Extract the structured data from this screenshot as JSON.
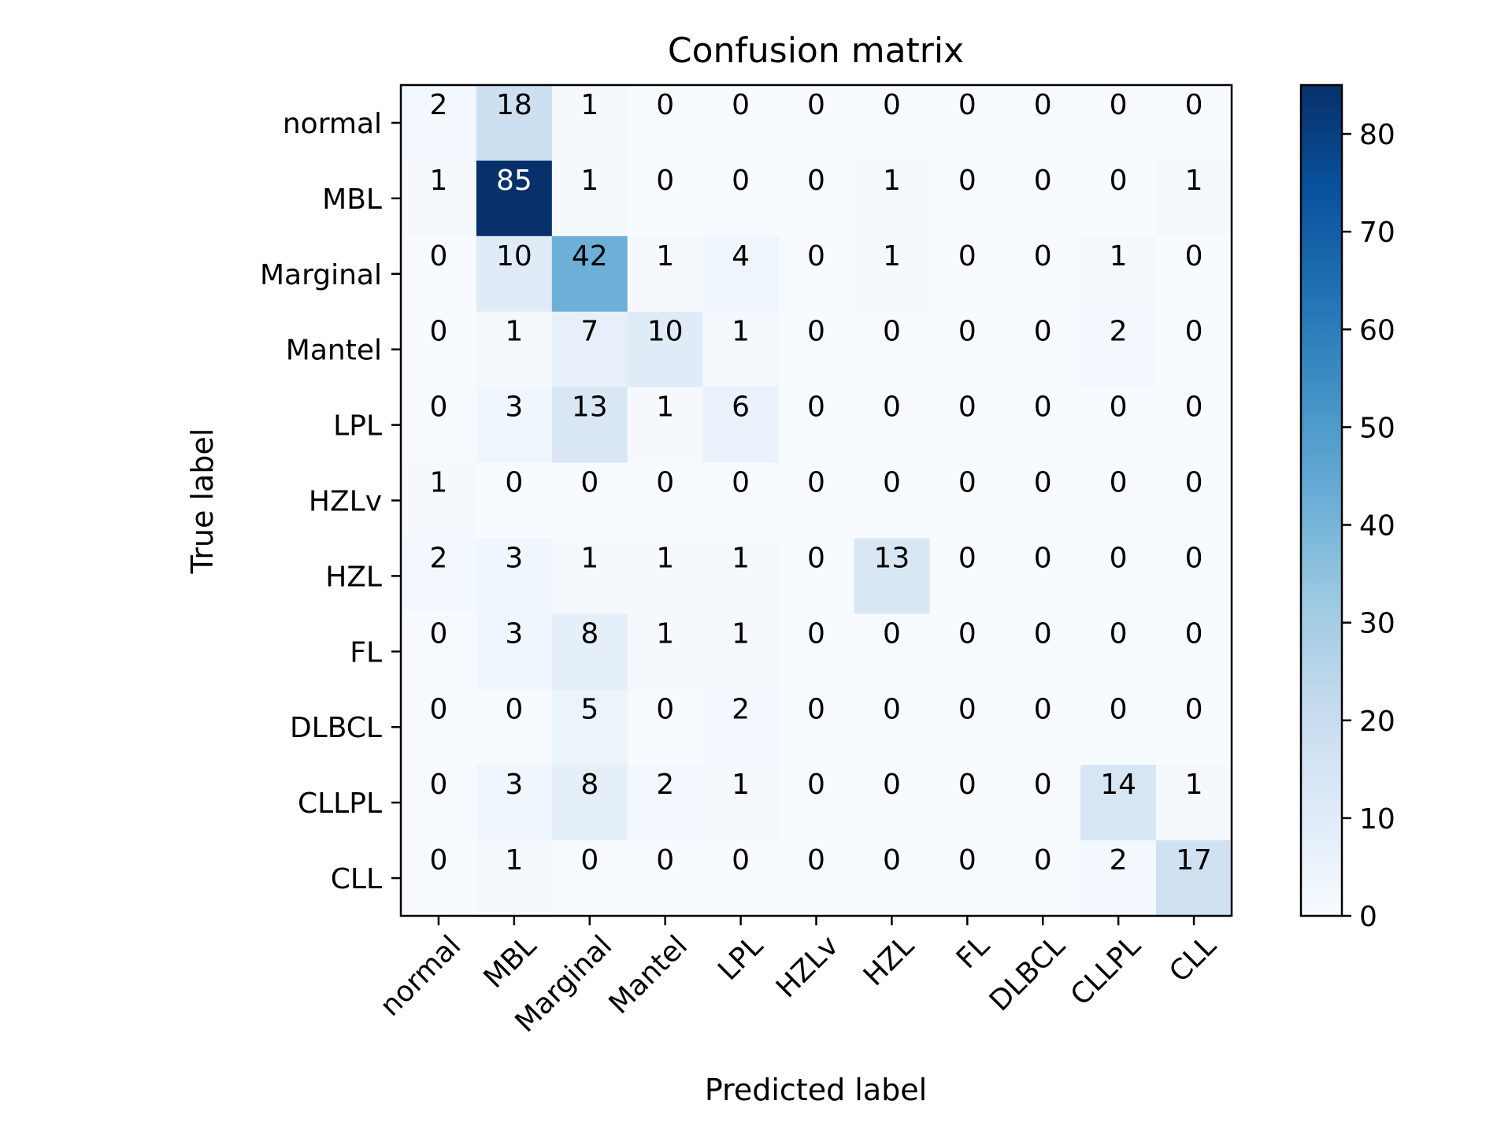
{
  "chart_data": {
    "type": "heatmap",
    "title": "Confusion matrix",
    "xlabel": "Predicted label",
    "ylabel": "True label",
    "x_categories": [
      "normal",
      "MBL",
      "Marginal",
      "Mantel",
      "LPL",
      "HZLv",
      "HZL",
      "FL",
      "DLBCL",
      "CLLPL",
      "CLL"
    ],
    "y_categories": [
      "normal",
      "MBL",
      "Marginal",
      "Mantel",
      "LPL",
      "HZLv",
      "HZL",
      "FL",
      "DLBCL",
      "CLLPL",
      "CLL"
    ],
    "values": [
      [
        2,
        18,
        1,
        0,
        0,
        0,
        0,
        0,
        0,
        0,
        0
      ],
      [
        1,
        85,
        1,
        0,
        0,
        0,
        1,
        0,
        0,
        0,
        1
      ],
      [
        0,
        10,
        42,
        1,
        4,
        0,
        1,
        0,
        0,
        1,
        0
      ],
      [
        0,
        1,
        7,
        10,
        1,
        0,
        0,
        0,
        0,
        2,
        0
      ],
      [
        0,
        3,
        13,
        1,
        6,
        0,
        0,
        0,
        0,
        0,
        0
      ],
      [
        1,
        0,
        0,
        0,
        0,
        0,
        0,
        0,
        0,
        0,
        0
      ],
      [
        2,
        3,
        1,
        1,
        1,
        0,
        13,
        0,
        0,
        0,
        0
      ],
      [
        0,
        3,
        8,
        1,
        1,
        0,
        0,
        0,
        0,
        0,
        0
      ],
      [
        0,
        0,
        5,
        0,
        2,
        0,
        0,
        0,
        0,
        0,
        0
      ],
      [
        0,
        3,
        8,
        2,
        1,
        0,
        0,
        0,
        0,
        14,
        1
      ],
      [
        0,
        1,
        0,
        0,
        0,
        0,
        0,
        0,
        0,
        2,
        17
      ]
    ],
    "colormap": "Blues",
    "colorbar": {
      "range": [
        0,
        85
      ],
      "ticks": [
        0,
        10,
        20,
        30,
        40,
        50,
        60,
        70,
        80
      ]
    },
    "x_tick_rotation_deg": 45
  }
}
